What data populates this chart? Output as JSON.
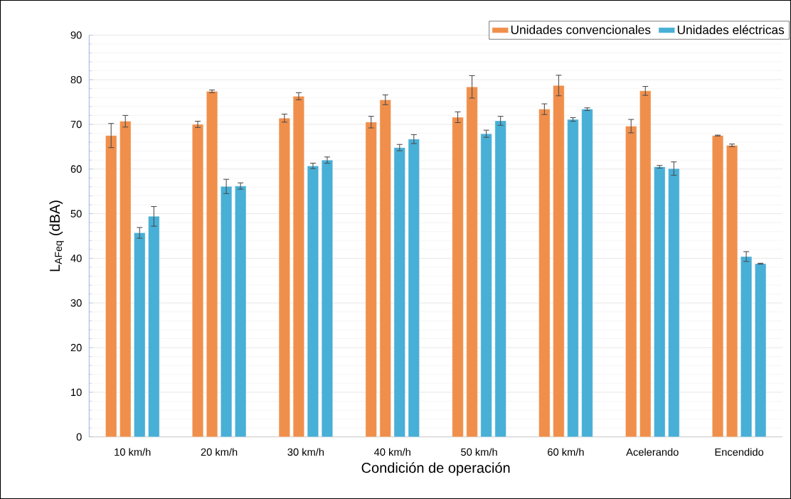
{
  "chart_data": {
    "type": "bar",
    "xlabel": "Condición de operación",
    "ylabel": "L$_{AFeq}$ (dBA)",
    "categories": [
      "10 km/h",
      "20  km/h",
      "30  km/h",
      "40  km/h",
      "50 km/h",
      "60 km/h",
      "Acelerando",
      "Encendido"
    ],
    "series": [
      {
        "name": "Unidades convencionales",
        "color": "#f08f4b",
        "values": [
          67.5,
          70.0,
          71.4,
          70.5,
          71.6,
          73.4,
          69.6,
          67.5
        ],
        "errors": [
          2.7,
          0.7,
          0.9,
          1.3,
          1.2,
          1.2,
          1.5,
          0.1
        ]
      },
      {
        "color": "#f08f4b",
        "values": [
          70.7,
          77.4,
          76.3,
          75.5,
          78.4,
          78.7,
          77.5,
          65.3
        ],
        "errors": [
          1.3,
          0.3,
          0.8,
          1.1,
          2.5,
          2.3,
          1.0,
          0.3
        ]
      },
      {
        "name": "Unidades eléctricas",
        "color": "#48afd6",
        "values": [
          45.7,
          56.1,
          60.7,
          64.8,
          67.9,
          71.1,
          60.5,
          40.4
        ],
        "errors": [
          1.2,
          1.6,
          0.6,
          0.7,
          0.8,
          0.4,
          0.3,
          1.1
        ]
      },
      {
        "color": "#48afd6",
        "values": [
          49.4,
          56.2,
          62.0,
          66.7,
          70.8,
          73.4,
          60.1,
          38.8
        ],
        "errors": [
          2.2,
          0.7,
          0.7,
          1.0,
          1.0,
          0.3,
          1.5,
          0.1
        ]
      }
    ],
    "ylim": [
      0,
      90
    ],
    "yticks": [
      0,
      10,
      20,
      30,
      40,
      50,
      60,
      70,
      80,
      90
    ],
    "grid": "y",
    "legend": "top right"
  }
}
